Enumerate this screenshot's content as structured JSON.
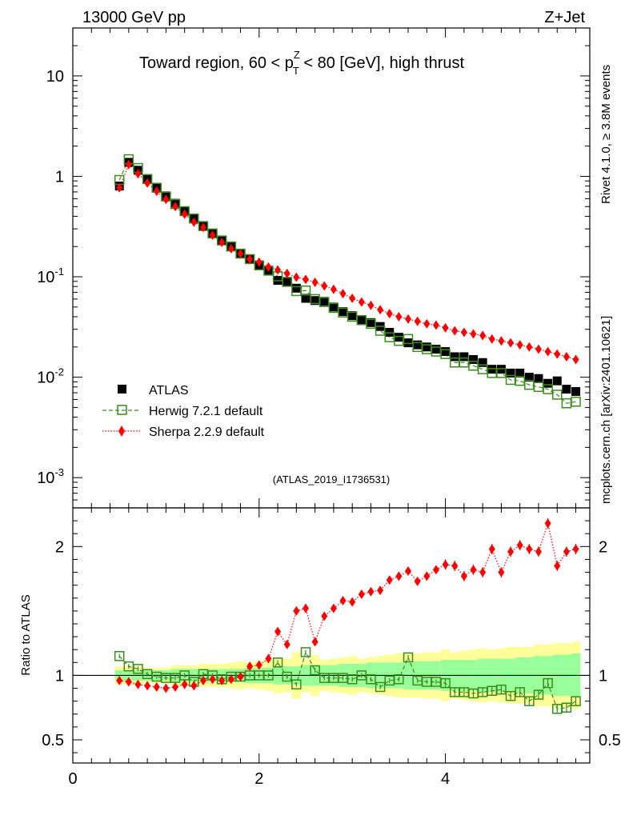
{
  "header": {
    "left": "13000 GeV pp",
    "right": "Z+Jet",
    "title_part1": "Toward region, 60 < p",
    "title_sup": "Z",
    "title_sub": "T",
    "title_part2": " < 80 [GeV], high thrust"
  },
  "side": {
    "rivet": "Rivet 4.1.0, ≥ 3.8M events",
    "mcplots": "mcplots.cern.ch [arXiv:2401.10621]"
  },
  "analysis_id": "(ATLAS_2019_I1736531)",
  "legend": [
    {
      "name": "ATLAS",
      "color": "#000000"
    },
    {
      "name": "Herwig 7.2.1 default",
      "color": "#3a8c1c"
    },
    {
      "name": "Sherpa 2.2.9 default",
      "color": "#ff0000"
    }
  ],
  "colors": {
    "band_inner": "#99ff99",
    "band_outer": "#ffff99"
  },
  "chart_data": {
    "type": "scatter",
    "x": [
      0.5,
      0.6,
      0.7,
      0.8,
      0.9,
      1.0,
      1.1,
      1.2,
      1.3,
      1.4,
      1.5,
      1.6,
      1.7,
      1.8,
      1.9,
      2.0,
      2.1,
      2.2,
      2.3,
      2.4,
      2.5,
      2.6,
      2.7,
      2.8,
      2.9,
      3.0,
      3.1,
      3.2,
      3.3,
      3.4,
      3.5,
      3.6,
      3.7,
      3.8,
      3.9,
      4.0,
      4.1,
      4.2,
      4.3,
      4.4,
      4.5,
      4.6,
      4.7,
      4.8,
      4.9,
      5.0,
      5.1,
      5.2,
      5.3,
      5.4
    ],
    "main": {
      "yscale": "log",
      "ylim": [
        0.0005,
        30
      ],
      "yticks": [
        {
          "base": "10",
          "exp": "-3"
        },
        {
          "base": "10",
          "exp": "-2"
        },
        {
          "base": "10",
          "exp": "-1"
        },
        {
          "base": "1",
          "exp": ""
        },
        {
          "base": "10",
          "exp": ""
        }
      ],
      "series": [
        {
          "name": "ATLAS",
          "values": [
            0.8,
            1.38,
            1.15,
            0.93,
            0.78,
            0.64,
            0.54,
            0.45,
            0.38,
            0.32,
            0.27,
            0.23,
            0.2,
            0.17,
            0.15,
            0.13,
            0.115,
            0.092,
            0.089,
            0.077,
            0.061,
            0.058,
            0.057,
            0.05,
            0.045,
            0.041,
            0.037,
            0.035,
            0.032,
            0.028,
            0.025,
            0.022,
            0.021,
            0.02,
            0.019,
            0.018,
            0.016,
            0.016,
            0.015,
            0.014,
            0.012,
            0.012,
            0.011,
            0.011,
            0.01,
            0.0097,
            0.0087,
            0.0092,
            0.0076,
            0.0072
          ]
        },
        {
          "name": "Herwig 7.2.1 default",
          "values": [
            0.92,
            1.48,
            1.21,
            0.94,
            0.77,
            0.63,
            0.53,
            0.45,
            0.38,
            0.32,
            0.27,
            0.23,
            0.2,
            0.17,
            0.15,
            0.13,
            0.115,
            0.101,
            0.089,
            0.072,
            0.073,
            0.06,
            0.056,
            0.049,
            0.044,
            0.04,
            0.037,
            0.034,
            0.029,
            0.025,
            0.023,
            0.024,
            0.02,
            0.019,
            0.018,
            0.017,
            0.014,
            0.014,
            0.013,
            0.012,
            0.011,
            0.011,
            0.0094,
            0.0092,
            0.0084,
            0.008,
            0.0076,
            0.0067,
            0.0055,
            0.0057
          ]
        },
        {
          "name": "Sherpa 2.2.9 default",
          "values": [
            0.77,
            1.31,
            1.06,
            0.86,
            0.71,
            0.59,
            0.5,
            0.42,
            0.35,
            0.31,
            0.26,
            0.22,
            0.19,
            0.17,
            0.15,
            0.14,
            0.125,
            0.117,
            0.108,
            0.099,
            0.094,
            0.088,
            0.081,
            0.075,
            0.068,
            0.061,
            0.056,
            0.052,
            0.047,
            0.043,
            0.04,
            0.038,
            0.036,
            0.034,
            0.033,
            0.031,
            0.029,
            0.028,
            0.027,
            0.026,
            0.024,
            0.023,
            0.022,
            0.021,
            0.02,
            0.019,
            0.018,
            0.017,
            0.016,
            0.015
          ]
        }
      ]
    },
    "ratio": {
      "ylabel": "Ratio to ATLAS",
      "ylim": [
        0.32,
        2.3
      ],
      "yticks": [
        0.5,
        1,
        2
      ],
      "ytick_labels": [
        "0.5",
        "1",
        "2"
      ],
      "xlim": [
        0,
        5.55
      ],
      "xticks": [
        0,
        2,
        4
      ],
      "xtick_labels": [
        "0",
        "2",
        "4"
      ],
      "herwig": [
        1.15,
        1.07,
        1.05,
        1.01,
        0.99,
        0.98,
        0.98,
        1.0,
        0.95,
        1.01,
        1.0,
        0.97,
        0.99,
        0.99,
        1.0,
        1.0,
        1.0,
        1.1,
        0.99,
        0.93,
        1.18,
        1.04,
        0.98,
        0.98,
        0.98,
        0.97,
        1.0,
        0.97,
        0.91,
        0.96,
        0.97,
        1.14,
        0.96,
        0.95,
        0.95,
        0.94,
        0.87,
        0.87,
        0.86,
        0.87,
        0.88,
        0.89,
        0.84,
        0.87,
        0.8,
        0.85,
        0.94,
        0.74,
        0.75,
        0.8
      ],
      "sherpa": [
        0.96,
        0.95,
        0.93,
        0.92,
        0.91,
        0.9,
        0.91,
        0.93,
        0.92,
        0.96,
        0.97,
        0.96,
        0.97,
        0.99,
        1.07,
        1.08,
        1.13,
        1.34,
        1.24,
        1.5,
        1.52,
        1.26,
        1.46,
        1.52,
        1.58,
        1.57,
        1.63,
        1.65,
        1.66,
        1.74,
        1.77,
        1.81,
        1.73,
        1.77,
        1.82,
        1.86,
        1.85,
        1.77,
        1.82,
        1.8,
        1.98,
        1.8,
        1.96,
        2.01,
        1.98,
        1.96,
        2.18,
        1.85,
        1.96,
        1.98
      ],
      "band_inner": [
        0.04,
        0.04,
        0.04,
        0.04,
        0.04,
        0.04,
        0.05,
        0.05,
        0.05,
        0.05,
        0.05,
        0.05,
        0.05,
        0.05,
        0.06,
        0.06,
        0.06,
        0.07,
        0.07,
        0.07,
        0.08,
        0.08,
        0.08,
        0.08,
        0.09,
        0.09,
        0.09,
        0.1,
        0.1,
        0.1,
        0.1,
        0.11,
        0.11,
        0.11,
        0.11,
        0.12,
        0.12,
        0.12,
        0.12,
        0.13,
        0.13,
        0.13,
        0.13,
        0.14,
        0.14,
        0.15,
        0.15,
        0.16,
        0.16,
        0.17
      ],
      "band_outer": [
        0.07,
        0.07,
        0.07,
        0.06,
        0.06,
        0.06,
        0.08,
        0.08,
        0.08,
        0.09,
        0.09,
        0.09,
        0.1,
        0.11,
        0.1,
        0.11,
        0.12,
        0.14,
        0.13,
        0.18,
        0.13,
        0.16,
        0.12,
        0.13,
        0.14,
        0.15,
        0.13,
        0.14,
        0.15,
        0.16,
        0.17,
        0.17,
        0.17,
        0.18,
        0.18,
        0.2,
        0.18,
        0.19,
        0.2,
        0.21,
        0.2,
        0.21,
        0.22,
        0.22,
        0.22,
        0.24,
        0.24,
        0.25,
        0.25,
        0.26
      ]
    }
  }
}
